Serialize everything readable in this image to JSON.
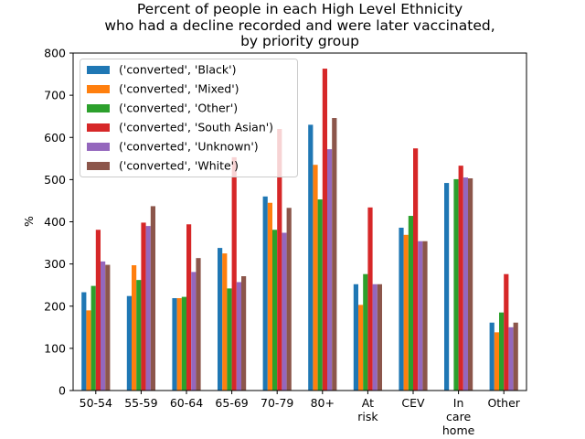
{
  "chart_data": {
    "type": "bar",
    "title_lines": [
      "Percent of people in each High Level Ethnicity",
      "who had a decline recorded and were later vaccinated,",
      "by priority group"
    ],
    "xlabel": "",
    "ylabel": "%",
    "ylim": [
      0,
      800
    ],
    "yticks": [
      0,
      100,
      200,
      300,
      400,
      500,
      600,
      700,
      800
    ],
    "grid": false,
    "legend_position": "upper-left",
    "categories": [
      [
        "50-54"
      ],
      [
        "55-59"
      ],
      [
        "60-64"
      ],
      [
        "65-69"
      ],
      [
        "70-79"
      ],
      [
        "80+"
      ],
      [
        "At",
        "risk"
      ],
      [
        "CEV"
      ],
      [
        "In",
        "care",
        "home"
      ],
      [
        "Other"
      ]
    ],
    "series": [
      {
        "name": "('converted', 'Black')",
        "color": "#1f77b4",
        "values": [
          233,
          224,
          219,
          338,
          460,
          630,
          252,
          386,
          492,
          161
        ]
      },
      {
        "name": "('converted', 'Mixed')",
        "color": "#ff7f0e",
        "values": [
          190,
          297,
          219,
          325,
          445,
          535,
          203,
          369,
          0,
          138
        ]
      },
      {
        "name": "('converted', 'Other')",
        "color": "#2ca02c",
        "values": [
          248,
          262,
          222,
          242,
          381,
          453,
          276,
          414,
          501,
          185
        ]
      },
      {
        "name": "('converted', 'South Asian')",
        "color": "#d62728",
        "values": [
          381,
          398,
          394,
          553,
          620,
          763,
          434,
          574,
          533,
          276
        ]
      },
      {
        "name": "('converted', 'Unknown')",
        "color": "#9467bd",
        "values": [
          306,
          390,
          281,
          257,
          374,
          572,
          252,
          354,
          505,
          150
        ]
      },
      {
        "name": "('converted', 'White')",
        "color": "#8c564b",
        "values": [
          298,
          437,
          314,
          271,
          433,
          646,
          252,
          354,
          503,
          161
        ]
      }
    ]
  }
}
